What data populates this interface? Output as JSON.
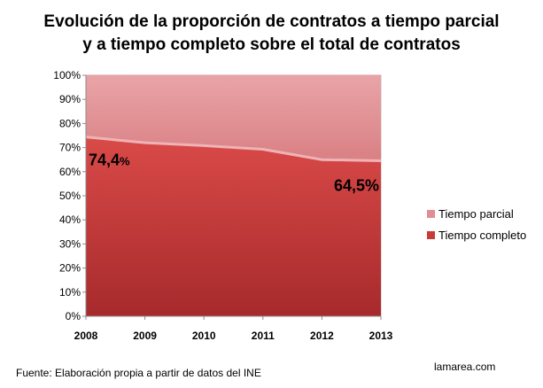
{
  "title_line1": "Evolución de la proporción de contratos a tiempo parcial",
  "title_line2": "y a tiempo completo sobre el total de contratos",
  "source": "Fuente: Elaboración propia a partir de datos del INE",
  "credit": "lamarea.com",
  "chart_data": {
    "type": "area",
    "stacked": true,
    "percent_stacked": true,
    "x": [
      "2008",
      "2009",
      "2010",
      "2011",
      "2012",
      "2013"
    ],
    "series": [
      {
        "name": "Tiempo completo",
        "values": [
          74.4,
          72.0,
          70.8,
          69.3,
          65.0,
          64.5
        ],
        "color": "#c83b3b"
      },
      {
        "name": "Tiempo parcial",
        "values": [
          25.6,
          28.0,
          29.2,
          30.7,
          35.0,
          35.5
        ],
        "color": "#e18d91"
      }
    ],
    "yticks": [
      "0%",
      "10%",
      "20%",
      "30%",
      "40%",
      "50%",
      "60%",
      "70%",
      "80%",
      "90%",
      "100%"
    ],
    "ylim": [
      0,
      100
    ],
    "data_labels": [
      {
        "series": "Tiempo completo",
        "x": "2008",
        "number": "74,4",
        "unit": "%"
      },
      {
        "series": "Tiempo completo",
        "x": "2013",
        "number": "64,5",
        "unit": "%"
      }
    ],
    "legend": [
      "Tiempo parcial",
      "Tiempo completo"
    ],
    "legend_position": "right",
    "grid": false
  }
}
